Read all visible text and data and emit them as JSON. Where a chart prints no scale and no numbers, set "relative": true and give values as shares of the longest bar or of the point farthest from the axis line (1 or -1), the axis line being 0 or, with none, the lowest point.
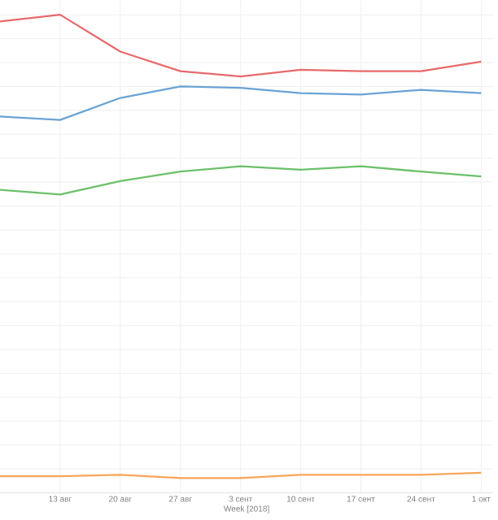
{
  "chart_data": {
    "type": "line",
    "relative": true,
    "xlabel": "Week [2018]",
    "grid": true,
    "marker": "none",
    "line_style": "solid",
    "categories": [
      null,
      "13 авг",
      "20 авг",
      "27 авг",
      "3 сент",
      "10 сент",
      "17 сент",
      "24 сент",
      "1 окт"
    ],
    "series": [
      {
        "color": "#e8696b",
        "values": [
          0.986,
          1,
          0.923,
          0.882,
          0.871,
          0.885,
          0.882,
          0.882,
          0.902
        ]
      },
      {
        "color": "#6aa3d5",
        "values": [
          0.787,
          0.78,
          0.826,
          0.85,
          0.847,
          0.836,
          0.833,
          0.843,
          0.836
        ]
      },
      {
        "color": "#6cc06a",
        "values": [
          0.634,
          0.624,
          0.652,
          0.672,
          0.683,
          0.676,
          0.683,
          0.672,
          0.662
        ]
      },
      {
        "color": "#f9a65a",
        "values": [
          0.035,
          0.035,
          0.038,
          0.031,
          0.031,
          0.038,
          0.038,
          0.038,
          0.042
        ]
      }
    ]
  }
}
